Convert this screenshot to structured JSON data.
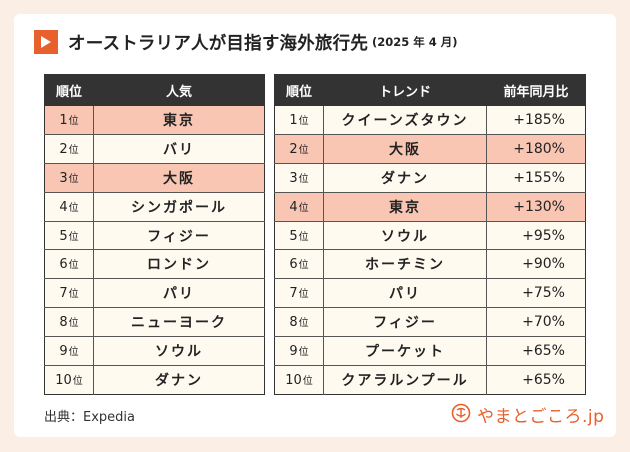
{
  "title": "オーストラリア人が目指す海外旅行先",
  "subtitle": "(2025 年 4 月)",
  "rank_unit": "位",
  "left_table": {
    "headers": [
      "順位",
      "人気"
    ],
    "rows": [
      {
        "rank": "1",
        "name": "東京",
        "highlight": true
      },
      {
        "rank": "2",
        "name": "バリ",
        "highlight": false
      },
      {
        "rank": "3",
        "name": "大阪",
        "highlight": true
      },
      {
        "rank": "4",
        "name": "シンガポール",
        "highlight": false
      },
      {
        "rank": "5",
        "name": "フィジー",
        "highlight": false
      },
      {
        "rank": "6",
        "name": "ロンドン",
        "highlight": false
      },
      {
        "rank": "7",
        "name": "パリ",
        "highlight": false
      },
      {
        "rank": "8",
        "name": "ニューヨーク",
        "highlight": false
      },
      {
        "rank": "9",
        "name": "ソウル",
        "highlight": false
      },
      {
        "rank": "10",
        "name": "ダナン",
        "highlight": false
      }
    ]
  },
  "right_table": {
    "headers": [
      "順位",
      "トレンド",
      "前年同月比"
    ],
    "rows": [
      {
        "rank": "1",
        "name": "クイーンズタウン",
        "change": "+185%",
        "highlight": false
      },
      {
        "rank": "2",
        "name": "大阪",
        "change": "+180%",
        "highlight": true
      },
      {
        "rank": "3",
        "name": "ダナン",
        "change": "+155%",
        "highlight": false
      },
      {
        "rank": "4",
        "name": "東京",
        "change": "+130%",
        "highlight": true
      },
      {
        "rank": "5",
        "name": "ソウル",
        "change": "+95%",
        "highlight": false
      },
      {
        "rank": "6",
        "name": "ホーチミン",
        "change": "+90%",
        "highlight": false
      },
      {
        "rank": "7",
        "name": "パリ",
        "change": "+75%",
        "highlight": false
      },
      {
        "rank": "8",
        "name": "フィジー",
        "change": "+70%",
        "highlight": false
      },
      {
        "rank": "9",
        "name": "プーケット",
        "change": "+65%",
        "highlight": false
      },
      {
        "rank": "10",
        "name": "クアラルンプール",
        "change": "+65%",
        "highlight": false
      }
    ]
  },
  "source": "出典：Expedia",
  "logo_text": "やまとごころ.jp",
  "colors": {
    "accent": "#e8602c",
    "highlight": "#f9c6b4",
    "header": "#333333",
    "row_bg": "#fffaf0",
    "page_bg": "#fbeee4"
  }
}
